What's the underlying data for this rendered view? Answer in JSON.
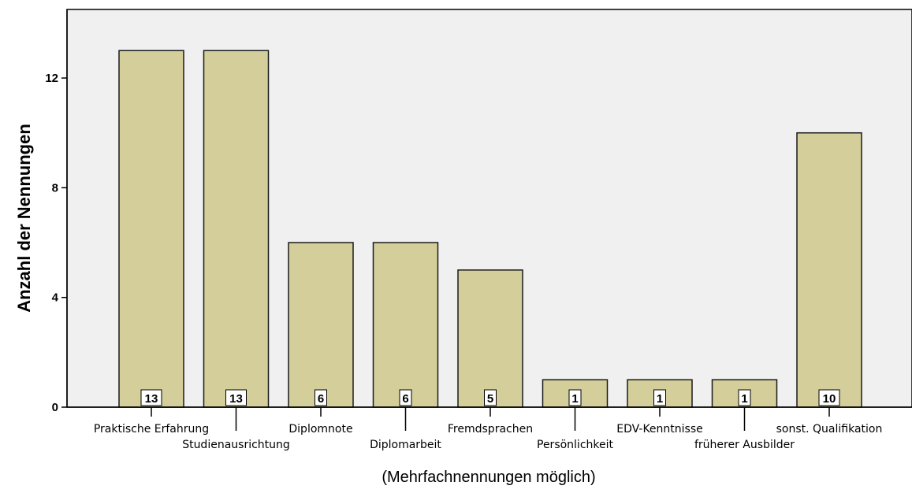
{
  "chart_data": {
    "type": "bar",
    "categories": [
      "Praktische Erfahrung",
      "Studienausrichtung",
      "Diplomnote",
      "Diplomarbeit",
      "Fremdsprachen",
      "Persönlichkeit",
      "EDV-Kenntnisse",
      "früherer Ausbilder",
      "sonst. Qualifikation"
    ],
    "values": [
      13,
      13,
      6,
      6,
      5,
      1,
      1,
      1,
      10
    ],
    "data_labels": [
      "13",
      "13",
      "6",
      "6",
      "5",
      "1",
      "1",
      "1",
      "10"
    ],
    "title": "",
    "xlabel": "(Mehrfachnennungen möglich)",
    "ylabel": "Anzahl der Nennungen",
    "ylim": [
      0,
      14.5
    ],
    "yticks": [
      0,
      4,
      8,
      12
    ],
    "ytick_labels": [
      "0",
      "4",
      "8",
      "12"
    ],
    "grid": false,
    "colors": {
      "plot_background": "#f0f0f0",
      "bar_fill": "#d3ce9a",
      "bar_stroke": "#1a1a1a",
      "label_box": "#ffffff"
    }
  }
}
